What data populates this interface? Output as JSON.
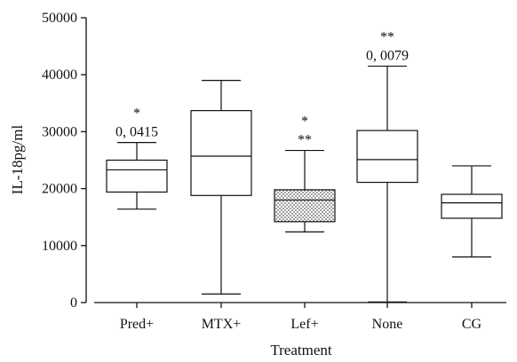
{
  "chart_data": {
    "type": "box",
    "title": "",
    "xlabel": "Treatment",
    "ylabel": "IL-18pg/ml",
    "ylim": [
      0,
      50000
    ],
    "yticks": [
      0,
      10000,
      20000,
      30000,
      40000,
      50000
    ],
    "ytick_labels": [
      "0",
      "10000",
      "20000",
      "30000",
      "40000",
      "50000"
    ],
    "categories": [
      "Pred+",
      "MTX+",
      "Lef+",
      "None",
      "CG"
    ],
    "boxes": [
      {
        "min": 16400,
        "q1": 19400,
        "median": 23300,
        "q3": 25000,
        "max": 28100,
        "fill": "none"
      },
      {
        "min": 1500,
        "q1": 18800,
        "median": 25700,
        "q3": 33700,
        "max": 39000,
        "fill": "none"
      },
      {
        "min": 12400,
        "q1": 14200,
        "median": 18000,
        "q3": 19800,
        "max": 26700,
        "fill": "dots"
      },
      {
        "min": 100,
        "q1": 21100,
        "median": 25100,
        "q3": 30200,
        "max": 41500,
        "fill": "none"
      },
      {
        "min": 8000,
        "q1": 14800,
        "median": 17500,
        "q3": 19000,
        "max": 24000,
        "fill": "none"
      }
    ],
    "annotations": [
      {
        "category": "Pred+",
        "lines": [
          "*",
          "0, 0415"
        ]
      },
      {
        "category": "Lef+",
        "lines": [
          "*",
          "**"
        ]
      },
      {
        "category": "None",
        "lines": [
          "**",
          "0, 0079"
        ]
      }
    ],
    "grid": false,
    "legend": "none"
  }
}
